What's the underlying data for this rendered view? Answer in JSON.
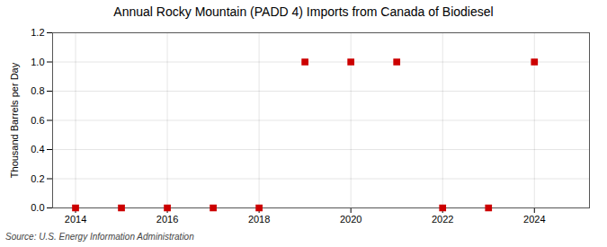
{
  "chart_data": {
    "type": "scatter",
    "title": "Annual Rocky Mountain (PADD 4) Imports from Canada of Biodiesel",
    "ylabel": "Thousand Barrels per Day",
    "source": "Source: U.S. Energy Information Administration",
    "x": [
      2014,
      2015,
      2016,
      2017,
      2018,
      2019,
      2020,
      2021,
      2022,
      2023,
      2024
    ],
    "values": [
      0,
      0,
      0,
      0,
      0,
      1.0,
      1.0,
      1.0,
      0,
      0,
      1.0
    ],
    "color": "#cc0000",
    "marker": "square",
    "xlim": [
      2013.5,
      2025.2
    ],
    "ylim": [
      0,
      1.2
    ],
    "xticks": [
      2014,
      2016,
      2018,
      2020,
      2022,
      2024
    ],
    "yticks": [
      {
        "value": 0,
        "label": "0.0"
      },
      0.2,
      0.4,
      0.6,
      0.8,
      {
        "value": 1,
        "label": "1.0"
      },
      1.2
    ],
    "grid": true
  }
}
